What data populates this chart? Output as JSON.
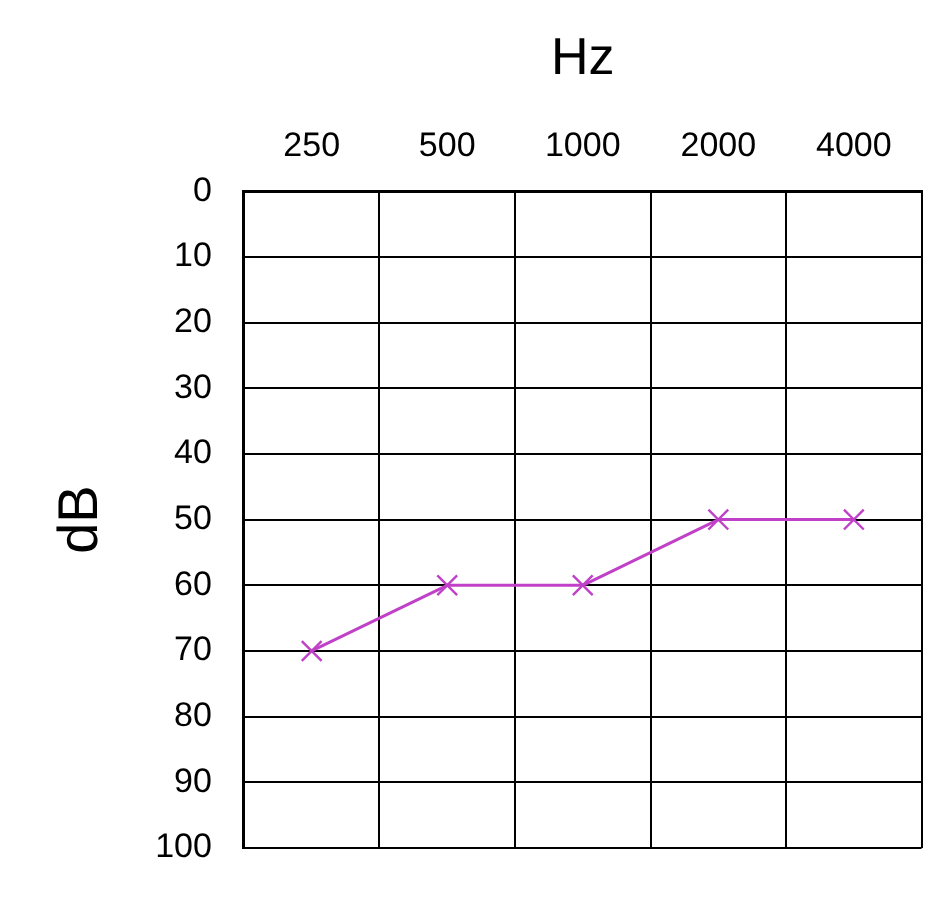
{
  "chart_data": {
    "type": "line",
    "xlabel": "Hz",
    "ylabel": "dB",
    "categories": [
      "250",
      "500",
      "1000",
      "2000",
      "4000"
    ],
    "series": [
      {
        "color": "#c040c8",
        "values": [
          70,
          60,
          60,
          50,
          50
        ]
      }
    ],
    "ylim": [
      100,
      0
    ],
    "yticks": [
      0,
      10,
      20,
      30,
      40,
      50,
      60,
      70,
      80,
      90,
      100
    ],
    "grid": true,
    "legend": false,
    "marker": "cross",
    "line_style": "solid"
  }
}
